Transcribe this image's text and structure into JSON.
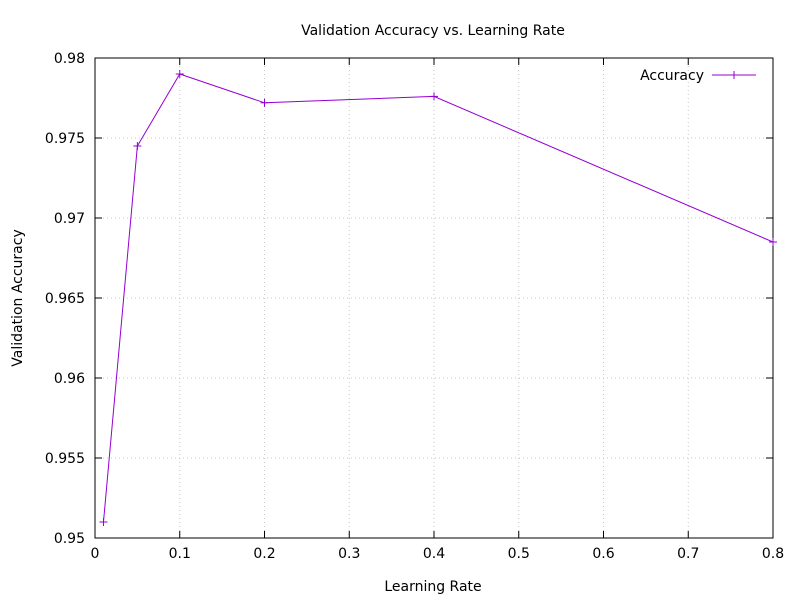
{
  "chart_data": {
    "type": "line",
    "title": "Validation Accuracy vs. Learning Rate",
    "xlabel": "Learning Rate",
    "ylabel": "Validation Accuracy",
    "xlim": [
      0,
      0.8
    ],
    "ylim": [
      0.95,
      0.98
    ],
    "x_ticks": [
      "0",
      "0.1",
      "0.2",
      "0.3",
      "0.4",
      "0.5",
      "0.6",
      "0.7",
      "0.8"
    ],
    "y_ticks": [
      "0.95",
      "0.955",
      "0.96",
      "0.965",
      "0.97",
      "0.975",
      "0.98"
    ],
    "grid": true,
    "legend_position": "top-right",
    "series": [
      {
        "name": "Accuracy",
        "color": "#9400d3",
        "marker": "plus",
        "x": [
          0.01,
          0.05,
          0.1,
          0.2,
          0.4,
          0.8
        ],
        "y": [
          0.951,
          0.9745,
          0.979,
          0.9772,
          0.9776,
          0.9685
        ]
      }
    ]
  }
}
